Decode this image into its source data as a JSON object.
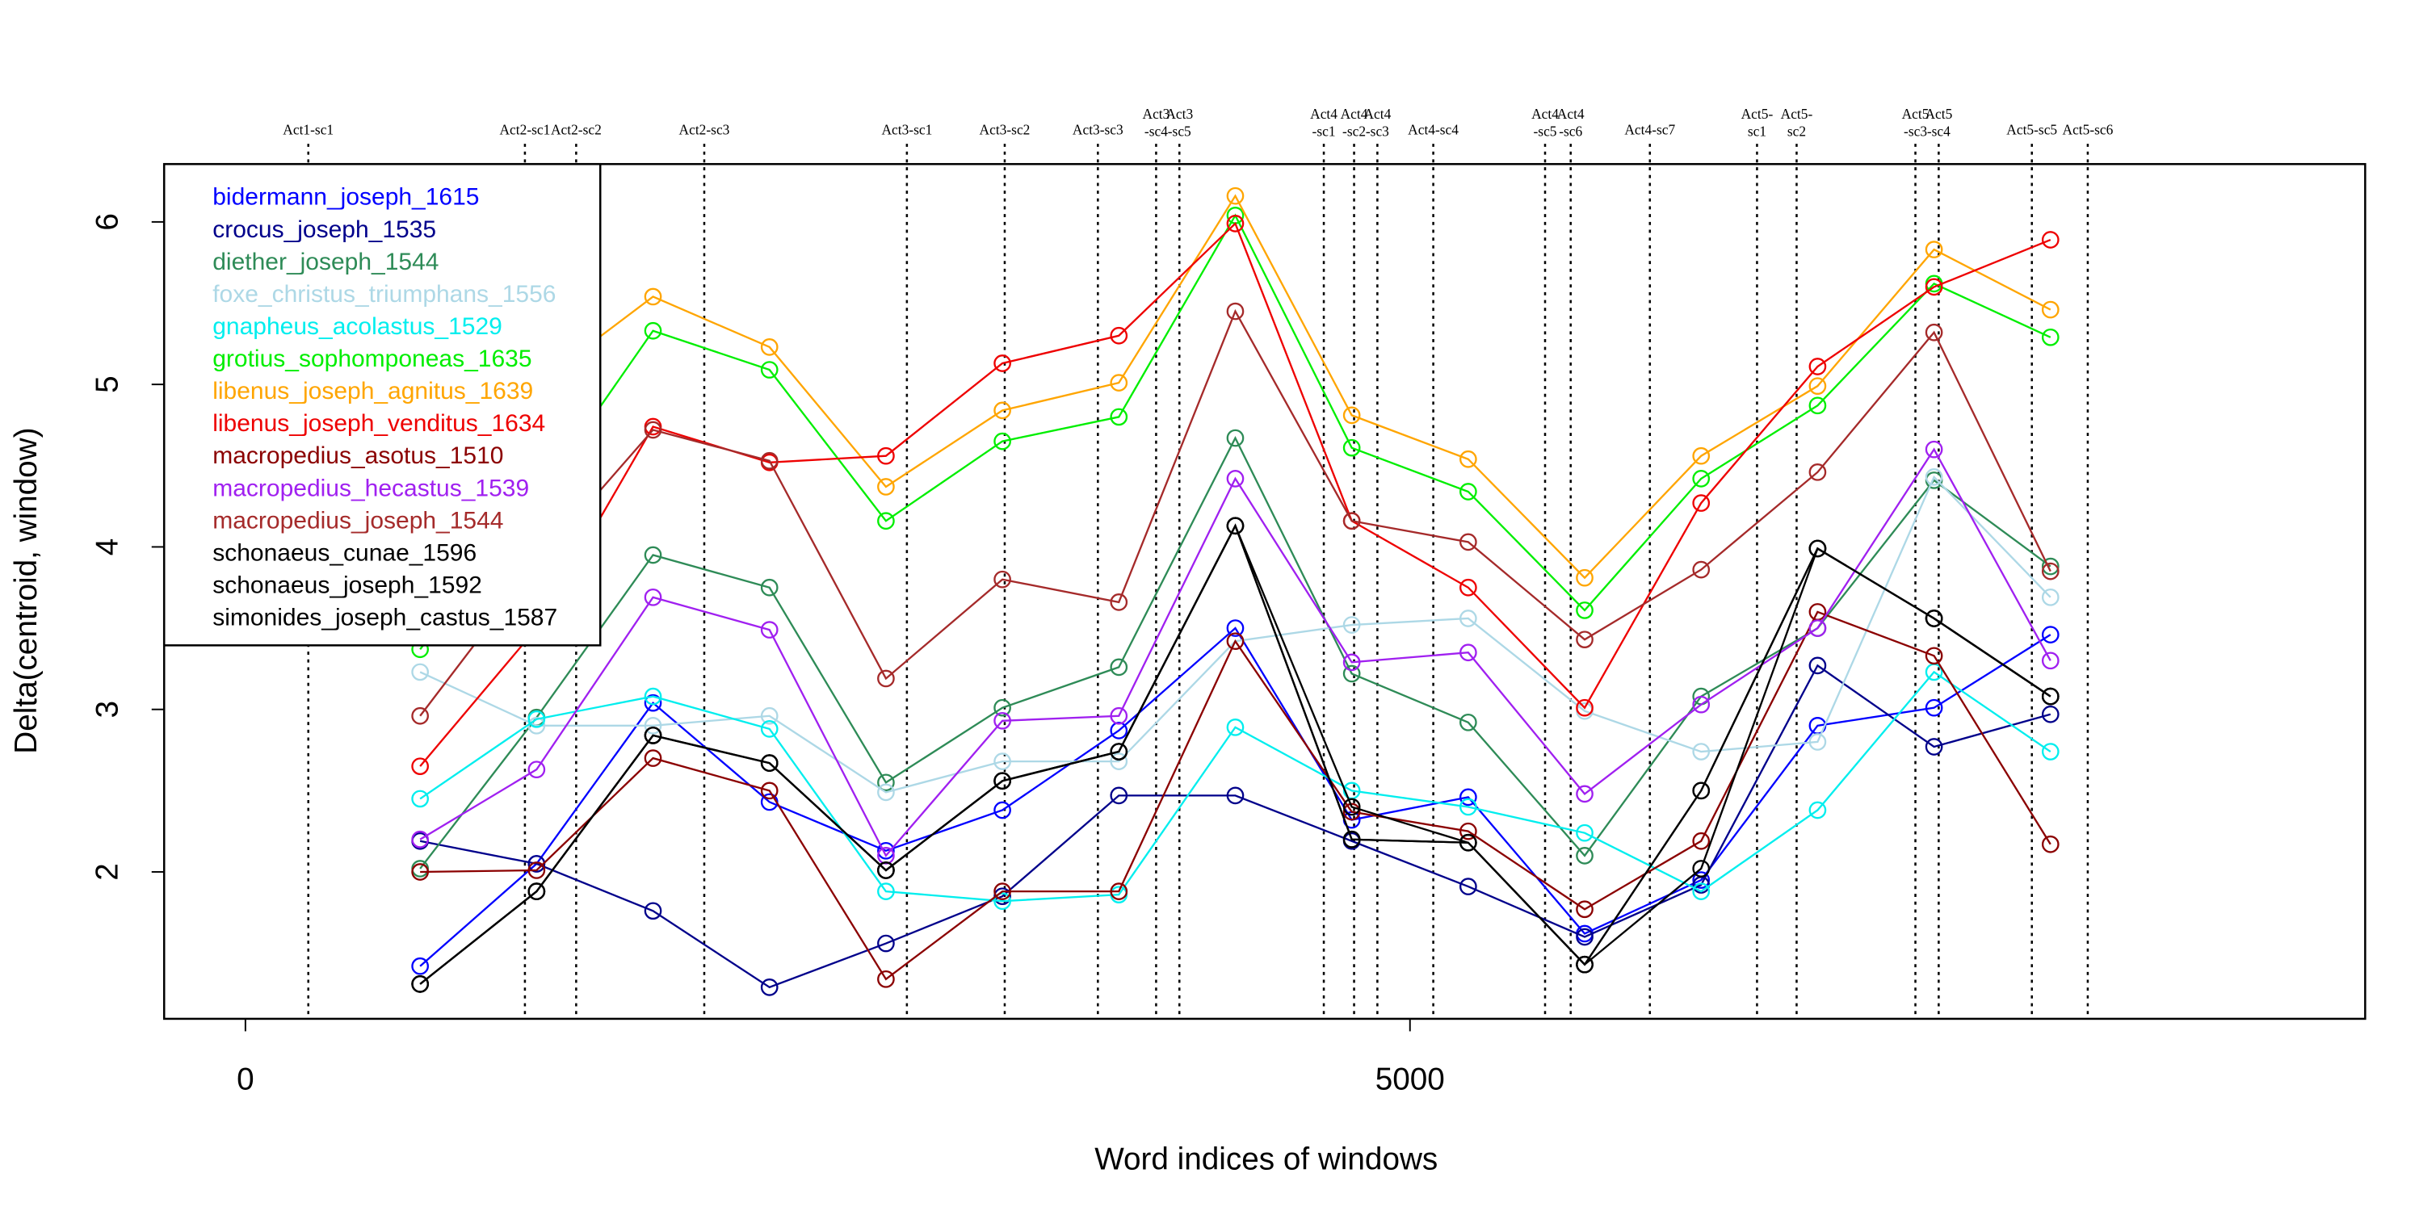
{
  "chart_data": {
    "type": "line",
    "xlabel": "Word indices of windows",
    "ylabel": "Delta(centroid, window)",
    "xlim": [
      -349,
      9101
    ],
    "ylim": [
      1.096,
      6.356
    ],
    "xticks": [
      0,
      5000
    ],
    "yticks": [
      2,
      3,
      4,
      5,
      6
    ],
    "legend": "top-left",
    "x": [
      750,
      1250,
      1750,
      2250,
      2750,
      3250,
      3750,
      4250,
      4750,
      5250,
      5750,
      6250,
      6750,
      7250,
      7750
    ],
    "vlines": [
      {
        "value": 270,
        "label": "Act1-sc1"
      },
      {
        "value": 1200,
        "label": "Act2-sc1"
      },
      {
        "value": 1420,
        "label": "Act2-sc2"
      },
      {
        "value": 1970,
        "label": "Act2-sc3"
      },
      {
        "value": 2840,
        "label": "Act3-sc1"
      },
      {
        "value": 3260,
        "label": "Act3-sc2"
      },
      {
        "value": 3660,
        "label": "Act3-sc3"
      },
      {
        "value": 3910,
        "label": "Act3\n-sc4"
      },
      {
        "value": 4010,
        "label": "Act3\n-sc5"
      },
      {
        "value": 4630,
        "label": "Act4\n-sc1"
      },
      {
        "value": 4760,
        "label": "Act4\n-sc2"
      },
      {
        "value": 4860,
        "label": "Act4\n-sc3"
      },
      {
        "value": 5100,
        "label": "Act4-sc4"
      },
      {
        "value": 5580,
        "label": "Act4\n-sc5"
      },
      {
        "value": 5690,
        "label": "Act4\n-sc6"
      },
      {
        "value": 6030,
        "label": "Act4-sc7"
      },
      {
        "value": 6490,
        "label": "Act5-\nsc1"
      },
      {
        "value": 6660,
        "label": "Act5-\nsc2"
      },
      {
        "value": 7170,
        "label": "Act5\n-sc3"
      },
      {
        "value": 7270,
        "label": "Act5\n-sc4"
      },
      {
        "value": 7670,
        "label": "Act5-sc5"
      },
      {
        "value": 7910,
        "label": "Act5-sc6"
      }
    ],
    "series": [
      {
        "name": "bidermann_joseph_1615",
        "color": "#0000ff",
        "values": [
          1.42,
          2.05,
          3.04,
          2.43,
          2.13,
          2.38,
          2.87,
          3.5,
          2.32,
          2.46,
          1.62,
          1.95,
          2.9,
          3.01,
          3.46
        ]
      },
      {
        "name": "crocus_joseph_1535",
        "color": "#00008b",
        "values": [
          2.19,
          2.05,
          1.76,
          1.29,
          1.56,
          1.85,
          2.47,
          2.47,
          2.19,
          1.91,
          1.6,
          1.92,
          3.27,
          2.77,
          2.97
        ]
      },
      {
        "name": "diether_joseph_1544",
        "color": "#2e8b57",
        "values": [
          2.02,
          2.95,
          3.95,
          3.75,
          2.55,
          3.01,
          3.26,
          4.67,
          3.22,
          2.92,
          2.1,
          3.08,
          3.5,
          4.41,
          3.88
        ]
      },
      {
        "name": "foxe_christus_triumphans_1556",
        "color": "#add8e6",
        "values": [
          3.23,
          2.9,
          2.9,
          2.96,
          2.49,
          2.68,
          2.68,
          3.42,
          3.52,
          3.56,
          2.99,
          2.74,
          2.8,
          4.43,
          3.69
        ]
      },
      {
        "name": "gnapheus_acolastus_1529",
        "color": "#00eeee",
        "values": [
          2.45,
          2.94,
          3.08,
          2.88,
          1.88,
          1.82,
          1.86,
          2.89,
          2.5,
          2.4,
          2.24,
          1.88,
          2.38,
          3.23,
          2.74
        ]
      },
      {
        "name": "grotius_sophomponeas_1635",
        "color": "#00ee00",
        "values": [
          3.37,
          4.3,
          5.33,
          5.09,
          4.16,
          4.65,
          4.8,
          6.04,
          4.61,
          4.34,
          3.61,
          4.42,
          4.87,
          5.62,
          5.29
        ]
      },
      {
        "name": "libenus_joseph_agnitus_1639",
        "color": "#ffa500",
        "values": [
          4.6,
          5.0,
          5.54,
          5.23,
          4.37,
          4.84,
          5.01,
          6.16,
          4.81,
          4.54,
          3.81,
          4.56,
          4.99,
          5.83,
          5.46
        ]
      },
      {
        "name": "libenus_joseph_venditus_1634",
        "color": "#ee0000",
        "values": [
          2.65,
          3.5,
          4.74,
          4.52,
          4.56,
          5.13,
          5.3,
          5.99,
          4.16,
          3.75,
          3.01,
          4.27,
          5.11,
          5.6,
          5.89
        ]
      },
      {
        "name": "macropedius_asotus_1510",
        "color": "#8b0000",
        "values": [
          2.0,
          2.01,
          2.7,
          2.5,
          1.34,
          1.88,
          1.88,
          3.42,
          2.37,
          2.25,
          1.77,
          2.19,
          3.6,
          3.33,
          2.17
        ]
      },
      {
        "name": "macropedius_hecastus_1539",
        "color": "#a020f0",
        "values": [
          2.2,
          2.63,
          3.69,
          3.49,
          2.1,
          2.93,
          2.96,
          4.42,
          3.29,
          3.35,
          2.48,
          3.03,
          3.5,
          4.6,
          3.3
        ]
      },
      {
        "name": "macropedius_joseph_1544",
        "color": "#a52a2a",
        "values": [
          2.96,
          3.9,
          4.72,
          4.53,
          3.19,
          3.8,
          3.66,
          5.45,
          4.16,
          4.03,
          3.43,
          3.86,
          4.46,
          5.32,
          3.85
        ]
      },
      {
        "name": "schonaeus_cunae_1596",
        "color": "#000000",
        "values": [
          1.31,
          1.88,
          2.84,
          2.67,
          2.01,
          2.56,
          2.74,
          4.13,
          2.2,
          2.18,
          1.43,
          2.5,
          3.99,
          3.56,
          3.08
        ]
      },
      {
        "name": "schonaeus_joseph_1592",
        "color": "#000000",
        "values": [
          1.31,
          1.88,
          2.84,
          2.67,
          2.01,
          2.56,
          2.74,
          4.13,
          2.4,
          2.18,
          1.43,
          2.02,
          3.99,
          3.56,
          3.08
        ]
      },
      {
        "name": "simonides_joseph_castus_1587",
        "color": "#000000",
        "values": [
          1.31,
          1.88,
          2.84,
          2.67,
          2.01,
          2.56,
          2.74,
          4.13,
          2.2,
          2.18,
          1.43,
          2.5,
          3.99,
          3.56,
          3.08
        ]
      }
    ]
  }
}
